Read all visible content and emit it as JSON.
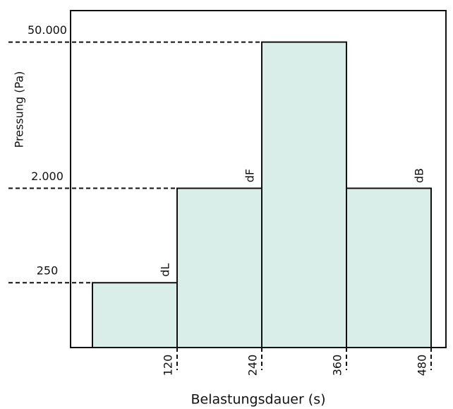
{
  "chart_data": {
    "type": "histogram",
    "xlabel": "Belastungsdauer (s)",
    "ylabel": "Pressung (Pa)",
    "bins": [
      0,
      120,
      240,
      360,
      480
    ],
    "values": [
      250,
      2000,
      50000,
      2000
    ],
    "annotations": [
      "dL",
      "dF",
      null,
      "dB"
    ],
    "color": "#d9ede9",
    "edgecolor": "#111111",
    "xlim": [
      -31,
      501
    ],
    "xticks": [
      120,
      240,
      360,
      480
    ],
    "ylim": [
      60,
      100000
    ],
    "yscale": "log",
    "yticks": [
      250,
      {
        "value": 2000,
        "label": "2.000"
      },
      {
        "value": 50000,
        "label": "50.000"
      }
    ]
  }
}
